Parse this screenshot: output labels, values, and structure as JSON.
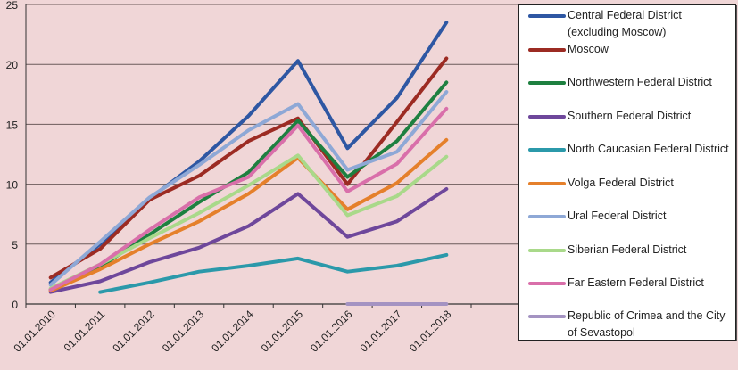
{
  "chart_data": {
    "type": "line",
    "title": "",
    "xlabel": "",
    "ylabel": "",
    "ylim": [
      0,
      25
    ],
    "yticks": [
      "0",
      "5",
      "10",
      "15",
      "20",
      "25"
    ],
    "grid": true,
    "legend_position": "right",
    "categories": [
      "01.01.2010",
      "01.01.2011",
      "01.01.2012",
      "01.01.2013",
      "01.01.2014",
      "01.01.2015",
      "01.01.2016",
      "01.01.2017",
      "01.01.2018"
    ],
    "series": [
      {
        "name": "Central Federal District (excluding Moscow)",
        "color": "#2e57a3",
        "values": [
          1.8,
          5.0,
          8.8,
          11.9,
          15.7,
          20.3,
          13.0,
          17.2,
          23.5
        ]
      },
      {
        "name": "Moscow",
        "color": "#9c2b23",
        "values": [
          2.2,
          4.6,
          8.7,
          10.7,
          13.6,
          15.5,
          10.0,
          15.2,
          20.5
        ]
      },
      {
        "name": "Northwestern Federal District",
        "color": "#1e8040",
        "values": [
          1.2,
          3.1,
          5.8,
          8.5,
          11.0,
          15.3,
          10.6,
          13.6,
          18.5
        ]
      },
      {
        "name": "Southern Federal District",
        "color": "#6e479b",
        "values": [
          1.0,
          1.9,
          3.5,
          4.7,
          6.5,
          9.2,
          5.6,
          6.9,
          9.6
        ]
      },
      {
        "name": "North Caucasian Federal District",
        "color": "#2b99aa",
        "values": [
          null,
          1.0,
          1.8,
          2.7,
          3.2,
          3.8,
          2.7,
          3.2,
          4.1
        ]
      },
      {
        "name": "Volga Federal District",
        "color": "#e5802b",
        "values": [
          1.1,
          2.9,
          5.0,
          6.9,
          9.2,
          12.2,
          7.9,
          10.1,
          13.7
        ]
      },
      {
        "name": "Ural Federal District",
        "color": "#8ea8d6",
        "values": [
          1.6,
          5.2,
          8.9,
          11.6,
          14.5,
          16.7,
          11.2,
          12.7,
          17.7
        ]
      },
      {
        "name": "Siberian Federal District",
        "color": "#a9d98a",
        "values": [
          1.3,
          3.3,
          5.5,
          7.6,
          9.9,
          12.4,
          7.4,
          9.0,
          12.3
        ]
      },
      {
        "name": "Far Eastern Federal District",
        "color": "#d96faa",
        "values": [
          1.2,
          3.3,
          6.2,
          8.9,
          10.6,
          14.9,
          9.4,
          11.7,
          16.3
        ]
      },
      {
        "name": "Republic of Crimea and the City of Sevastopol",
        "color": "#a493c2",
        "values": [
          null,
          null,
          null,
          null,
          null,
          null,
          0,
          0,
          0
        ]
      }
    ]
  }
}
